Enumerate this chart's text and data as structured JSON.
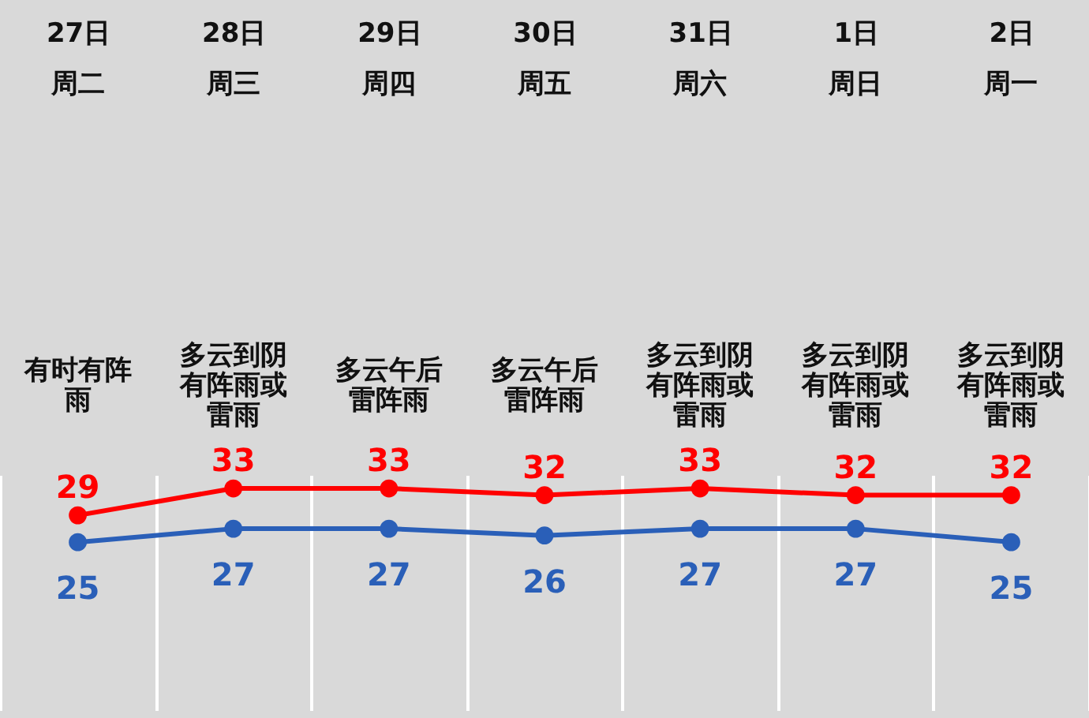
{
  "chart_data": {
    "type": "line",
    "categories": [
      "27日",
      "28日",
      "29日",
      "30日",
      "31日",
      "1日",
      "2日"
    ],
    "series": [
      {
        "color": "#ff0000",
        "values": [
          29,
          33,
          33,
          32,
          33,
          32,
          32
        ]
      },
      {
        "color": "#2a5fb8",
        "values": [
          25,
          27,
          27,
          26,
          27,
          27,
          25
        ]
      }
    ],
    "annotations": [
      "周二",
      "周三",
      "周四",
      "周五",
      "周六",
      "周日",
      "周一",
      "有时有阵雨",
      "多云到阴有阵雨或雷雨",
      "多云午后雷阵雨",
      "多云午后雷阵雨",
      "多云到阴有阵雨或雷雨",
      "多云到阴有阵雨或雷雨",
      "多云到阴有阵雨或雷雨"
    ],
    "data_labels": true,
    "marker": "circle",
    "grid": "x",
    "tick_labels": "x"
  }
}
